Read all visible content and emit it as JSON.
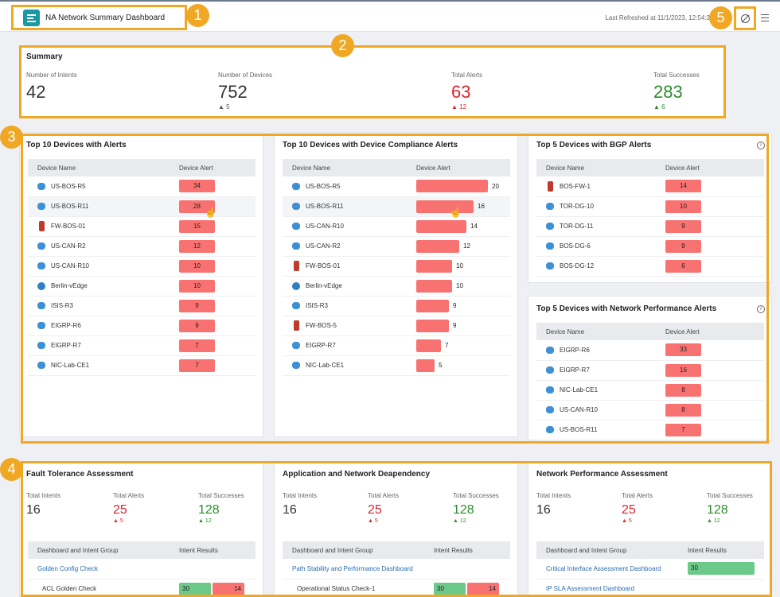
{
  "header": {
    "title": "NA Network Summary Dashboard",
    "refreshed": "Last Refreshed at 11/1/2023, 12:54:3"
  },
  "badges": [
    "1",
    "2",
    "3",
    "4",
    "5"
  ],
  "summary": {
    "title": "Summary",
    "items": [
      {
        "label": "Number of Intents",
        "value": "42",
        "delta": ""
      },
      {
        "label": "Number of Devices",
        "value": "752",
        "delta": "▲ 5"
      },
      {
        "label": "Total Alerts",
        "value": "63",
        "delta": "▲ 12"
      },
      {
        "label": "Total Successes",
        "value": "283",
        "delta": "▲ 6"
      }
    ]
  },
  "top10alerts": {
    "title": "Top 10 Devices with Alerts",
    "col1": "Device Name",
    "col2": "Device Alert",
    "rows": [
      {
        "name": "US-BOS-R5",
        "type": "router",
        "value": "34"
      },
      {
        "name": "US-BOS-R11",
        "type": "router",
        "value": "28"
      },
      {
        "name": "FW-BOS-01",
        "type": "firewall",
        "value": "15"
      },
      {
        "name": "US-CAN-R2",
        "type": "router",
        "value": "12"
      },
      {
        "name": "US-CAN-R10",
        "type": "router",
        "value": "10"
      },
      {
        "name": "Berlin-vEdge",
        "type": "edge",
        "value": "10"
      },
      {
        "name": "ISIS-R3",
        "type": "router",
        "value": "9"
      },
      {
        "name": "EIGRP-R6",
        "type": "router",
        "value": "9"
      },
      {
        "name": "EIGRP-R7",
        "type": "router",
        "value": "7"
      },
      {
        "name": "NIC-Lab-CE1",
        "type": "router",
        "value": "7"
      }
    ]
  },
  "compliance": {
    "title": "Top 10 Devices with Device Compliance Alerts",
    "col1": "Device Name",
    "col2": "Device Alert",
    "rows": [
      {
        "name": "US-BOS-R5",
        "type": "router",
        "value": 20
      },
      {
        "name": "US-BOS-R11",
        "type": "router",
        "value": 16
      },
      {
        "name": "US-CAN-R10",
        "type": "router",
        "value": 14
      },
      {
        "name": "US-CAN-R2",
        "type": "router",
        "value": 12
      },
      {
        "name": "FW-BOS-01",
        "type": "firewall",
        "value": 10
      },
      {
        "name": "Berlin-vEdge",
        "type": "edge",
        "value": 10
      },
      {
        "name": "ISIS-R3",
        "type": "router",
        "value": 9
      },
      {
        "name": "FW-BOS-5",
        "type": "firewall",
        "value": 9
      },
      {
        "name": "EIGRP-R7",
        "type": "router",
        "value": 7
      },
      {
        "name": "NIC-Lab-CE1",
        "type": "router",
        "value": 5
      }
    ]
  },
  "bgp": {
    "title": "Top 5 Devices with BGP Alerts",
    "col1": "Device Name",
    "col2": "Device Alert",
    "rows": [
      {
        "name": "BOS-FW-1",
        "type": "firewall",
        "value": "14"
      },
      {
        "name": "TOR-DG-10",
        "type": "router",
        "value": "10"
      },
      {
        "name": "TOR-DG-11",
        "type": "router",
        "value": "9"
      },
      {
        "name": "BOS-DG-6",
        "type": "router",
        "value": "9"
      },
      {
        "name": "BOS-DG-12",
        "type": "router",
        "value": "6"
      }
    ]
  },
  "netperf": {
    "title": "Top 5 Devices with Network Performance Alerts",
    "col1": "Device Name",
    "col2": "Device Alert",
    "rows": [
      {
        "name": "EIGRP-R6",
        "type": "router",
        "value": "33"
      },
      {
        "name": "EIGRP-R7",
        "type": "router",
        "value": "16"
      },
      {
        "name": "NIC-Lab-CE1",
        "type": "router",
        "value": "8"
      },
      {
        "name": "US-CAN-R10",
        "type": "router",
        "value": "8"
      },
      {
        "name": "US-BOS-R11",
        "type": "router",
        "value": "7"
      }
    ]
  },
  "assessments": [
    {
      "title": "Fault Tolerance Assessment",
      "intents_label": "Total Intents",
      "intents": "16",
      "alerts_label": "Total Alerts",
      "alerts": "25",
      "alerts_delta": "▲ 5",
      "succ_label": "Total Successes",
      "succ": "128",
      "succ_delta": "▲ 12",
      "col1": "Dashboard and Intent Group",
      "col2": "Intent Results",
      "rows": [
        {
          "label": "Golden Config Check",
          "link": true,
          "green": "",
          "red": ""
        },
        {
          "label": "ACL Golden Check",
          "link": false,
          "green": "30",
          "red": "14"
        }
      ]
    },
    {
      "title": "Application and Network Deapendency",
      "intents_label": "Total Intents",
      "intents": "16",
      "alerts_label": "Total Alerts",
      "alerts": "25",
      "alerts_delta": "▲ 5",
      "succ_label": "Total Successes",
      "succ": "128",
      "succ_delta": "▲ 12",
      "col1": "Dashboard and Intent Group",
      "col2": "Intent Results",
      "rows": [
        {
          "label": "Path Stability and Performance Dashboard",
          "link": true,
          "green": "",
          "red": ""
        },
        {
          "label": "Operational Status Check-1",
          "link": false,
          "green": "30",
          "red": "14"
        }
      ]
    },
    {
      "title": "Network Performance Assessment",
      "intents_label": "Total Intents",
      "intents": "16",
      "alerts_label": "Total Alerts",
      "alerts": "25",
      "alerts_delta": "▲ 5",
      "succ_label": "Total Successes",
      "succ": "128",
      "succ_delta": "▲ 12",
      "col1": "Dashboard and Intent Group",
      "col2": "Intent Results",
      "rows": [
        {
          "label": "Critical Interface Assessment Dashboard",
          "link": true,
          "green": "30",
          "red": ""
        },
        {
          "label": "IP SLA Assessment Dashboard",
          "link": true,
          "green": "",
          "red": ""
        }
      ]
    }
  ],
  "colors": {
    "accent": "#f0a824",
    "alert": "#f87272",
    "success": "#6dc98a",
    "teal": "#1a9aa0"
  }
}
